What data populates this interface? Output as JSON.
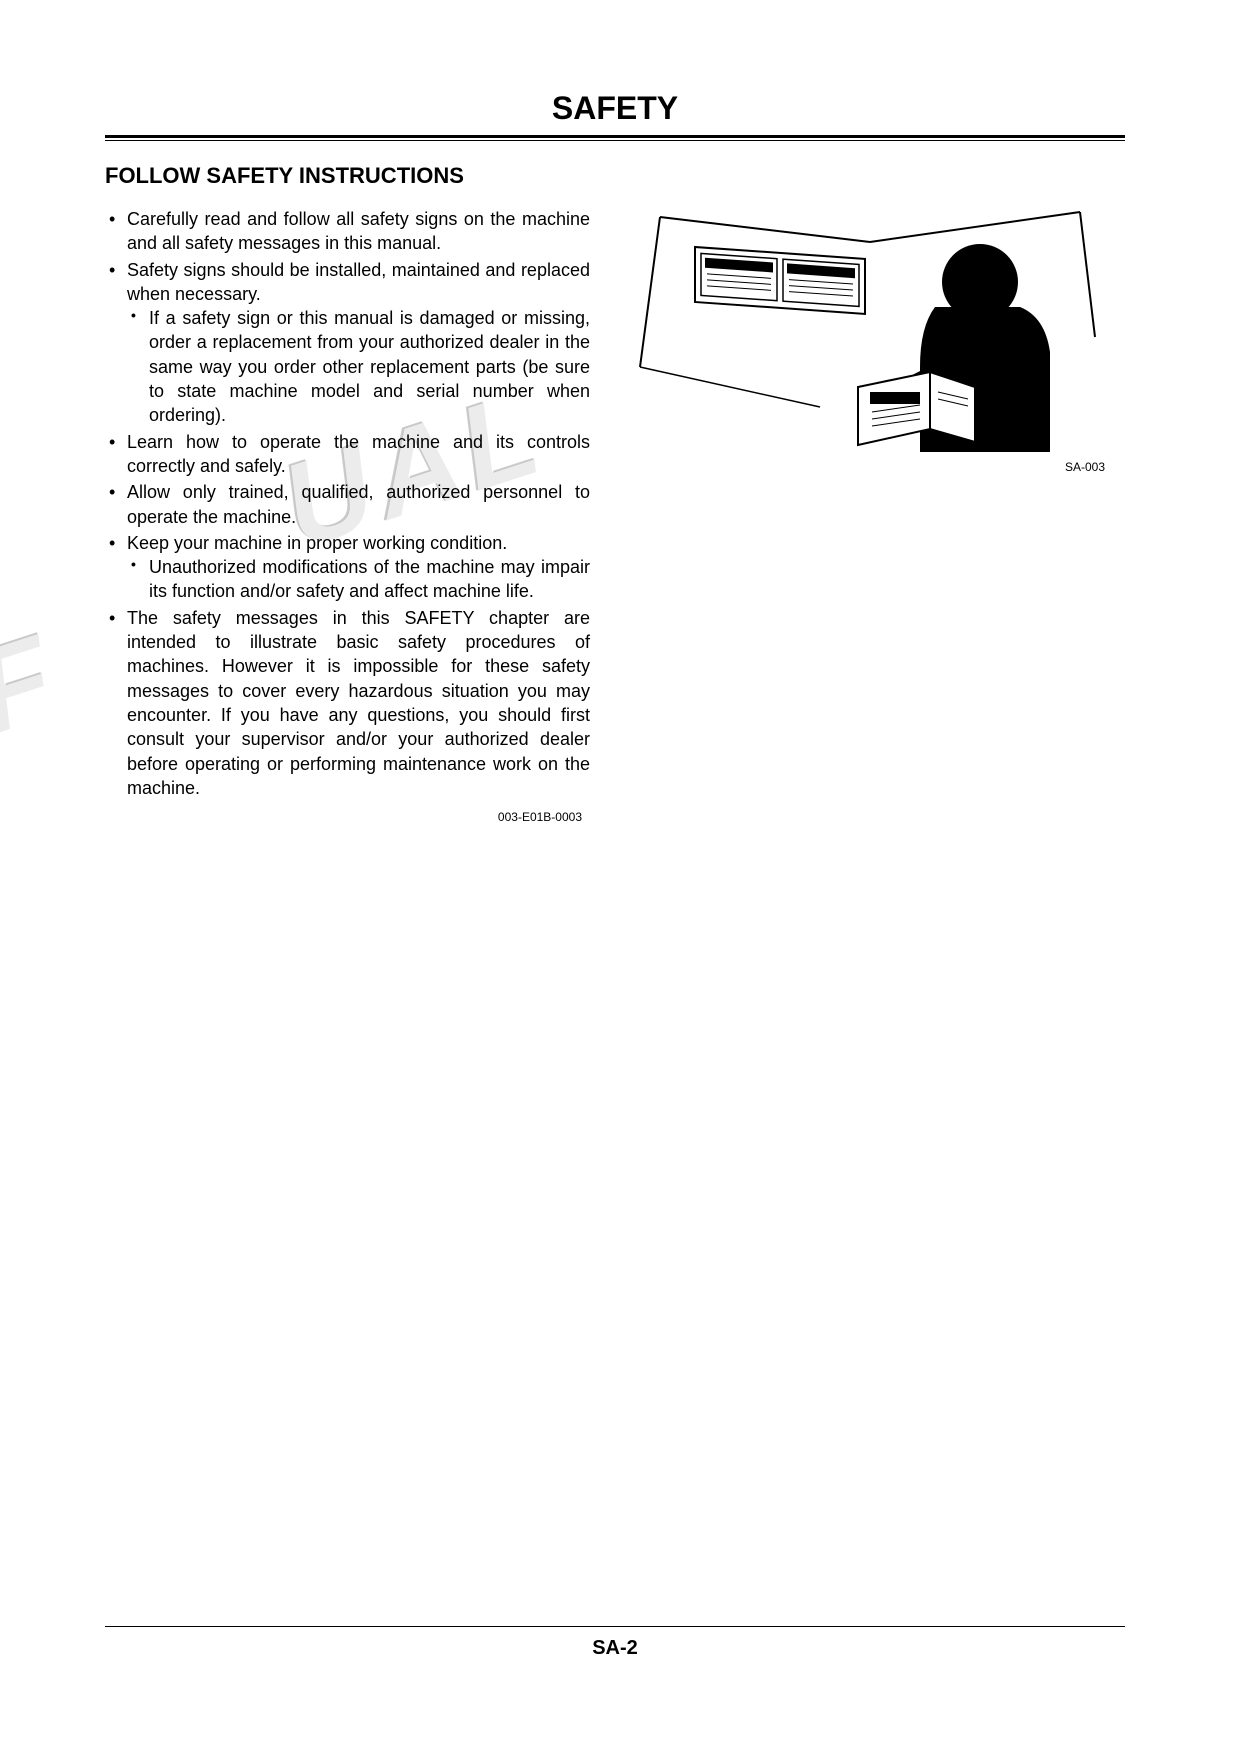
{
  "page": {
    "title": "SAFETY",
    "section_title": "FOLLOW SAFETY INSTRUCTIONS",
    "page_number": "SA-2",
    "doc_code": "003-E01B-0003",
    "figure_caption": "SA-003",
    "watermark_part1": "OF",
    "watermark_part2": "UAL"
  },
  "bullets": [
    {
      "text": "Carefully read and follow all safety signs on the machine and all safety messages in this manual."
    },
    {
      "text": "Safety signs should be installed, maintained and replaced when necessary.",
      "sub": [
        "If a safety sign or this manual is damaged or missing, order a replacement from your authorized dealer in the same way you order other replacement parts (be sure to state machine model and serial number when ordering)."
      ]
    },
    {
      "text": "Learn how to operate the machine and its controls correctly and safely."
    },
    {
      "text": "Allow only trained, qualified, authorized personnel to operate the machine."
    },
    {
      "text": "Keep your machine in proper working condition.",
      "sub": [
        "Unauthorized modifications of the machine may impair its function and/or safety and affect machine life."
      ]
    },
    {
      "text": "The safety messages in this SAFETY chapter are intended to illustrate basic safety procedures of machines. However it is impossible for these safety messages to cover every hazardous situation you may encounter. If you have any questions, you should first consult your supervisor and/or your authorized dealer before operating or performing maintenance work on the machine."
    }
  ],
  "colors": {
    "text": "#000000",
    "background": "#ffffff",
    "watermark": "rgba(180,180,180,0.25)"
  }
}
